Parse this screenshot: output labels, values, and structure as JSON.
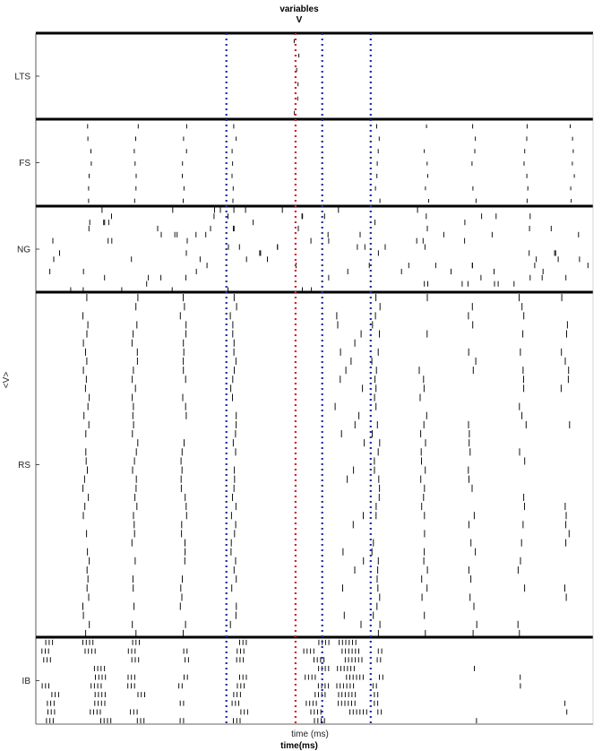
{
  "chart_data": {
    "type": "raster",
    "title": "variables",
    "subtitle": "V",
    "ylabel": "<V>",
    "xlabel": "time (ms)",
    "xlabel_bottom": "time(ms)",
    "grid": false,
    "markers": [
      {
        "x": 0.342,
        "color": "#1a2ea0",
        "style": "dotted"
      },
      {
        "x": 0.466,
        "color": "#d02020",
        "style": "dotted"
      },
      {
        "x": 0.514,
        "color": "#1a2ea0",
        "style": "dotted"
      },
      {
        "x": 0.601,
        "color": "#1a2ea0",
        "style": "dotted"
      }
    ],
    "panels": [
      {
        "name": "LTS",
        "rows": 6,
        "bursts": [
          {
            "x": 0.466,
            "jitter": 0.006,
            "prob": 0.9,
            "len": 0.28
          }
        ]
      },
      {
        "name": "FS",
        "rows": 7,
        "bursts": [
          {
            "x": 0.096,
            "jitter": 0.005,
            "prob": 1.0,
            "len": 0.35
          },
          {
            "x": 0.18,
            "jitter": 0.005,
            "prob": 1.0,
            "len": 0.35
          },
          {
            "x": 0.267,
            "jitter": 0.005,
            "prob": 1.0,
            "len": 0.35
          },
          {
            "x": 0.356,
            "jitter": 0.004,
            "prob": 1.0,
            "len": 0.35
          },
          {
            "x": 0.612,
            "jitter": 0.006,
            "prob": 1.0,
            "len": 0.35
          },
          {
            "x": 0.701,
            "jitter": 0.004,
            "prob": 0.8,
            "len": 0.3
          },
          {
            "x": 0.787,
            "jitter": 0.005,
            "prob": 0.9,
            "len": 0.35
          },
          {
            "x": 0.878,
            "jitter": 0.005,
            "prob": 0.9,
            "len": 0.35
          },
          {
            "x": 0.963,
            "jitter": 0.004,
            "prob": 0.8,
            "len": 0.3
          }
        ]
      },
      {
        "name": "NG",
        "rows": 14,
        "density": 2.2,
        "len": 0.9
      },
      {
        "name": "RS",
        "rows": 38,
        "bursts": [
          {
            "x": 0.09,
            "jitter": 0.006,
            "prob": 0.85,
            "len": 0.8
          },
          {
            "x": 0.178,
            "jitter": 0.006,
            "prob": 0.85,
            "len": 0.8
          },
          {
            "x": 0.265,
            "jitter": 0.006,
            "prob": 0.85,
            "len": 0.8
          },
          {
            "x": 0.355,
            "jitter": 0.006,
            "prob": 0.85,
            "len": 0.8
          },
          {
            "x": 0.56,
            "jitter": 0.03,
            "prob": 0.7,
            "len": 0.8
          },
          {
            "x": 0.61,
            "jitter": 0.008,
            "prob": 0.85,
            "len": 0.8
          },
          {
            "x": 0.696,
            "jitter": 0.008,
            "prob": 0.6,
            "len": 0.8
          },
          {
            "x": 0.784,
            "jitter": 0.008,
            "prob": 0.6,
            "len": 0.8
          },
          {
            "x": 0.873,
            "jitter": 0.008,
            "prob": 0.6,
            "len": 0.8
          },
          {
            "x": 0.95,
            "jitter": 0.008,
            "prob": 0.4,
            "len": 0.8
          }
        ]
      },
      {
        "name": "IB",
        "rows": 10,
        "bursts": [
          {
            "x": 0.02,
            "jitter": 0.01,
            "prob": 0.9,
            "len": 0.6,
            "train": 3
          },
          {
            "x": 0.1,
            "jitter": 0.02,
            "prob": 0.9,
            "len": 0.6,
            "train": 4
          },
          {
            "x": 0.175,
            "jitter": 0.01,
            "prob": 0.8,
            "len": 0.6,
            "train": 3
          },
          {
            "x": 0.265,
            "jitter": 0.01,
            "prob": 0.6,
            "len": 0.6,
            "train": 2
          },
          {
            "x": 0.36,
            "jitter": 0.01,
            "prob": 0.8,
            "len": 0.6,
            "train": 3
          },
          {
            "x": 0.495,
            "jitter": 0.015,
            "prob": 0.9,
            "len": 0.6,
            "train": 4
          },
          {
            "x": 0.56,
            "jitter": 0.02,
            "prob": 0.95,
            "len": 0.6,
            "train": 6
          },
          {
            "x": 0.612,
            "jitter": 0.008,
            "prob": 0.7,
            "len": 0.6,
            "train": 2
          },
          {
            "x": 0.7,
            "jitter": 0.004,
            "prob": 0.2,
            "len": 0.6,
            "train": 1
          },
          {
            "x": 0.79,
            "jitter": 0.004,
            "prob": 0.2,
            "len": 0.6,
            "train": 1
          },
          {
            "x": 0.87,
            "jitter": 0.004,
            "prob": 0.2,
            "len": 0.6,
            "train": 1
          },
          {
            "x": 0.95,
            "jitter": 0.004,
            "prob": 0.2,
            "len": 0.6,
            "train": 1
          }
        ]
      }
    ]
  }
}
